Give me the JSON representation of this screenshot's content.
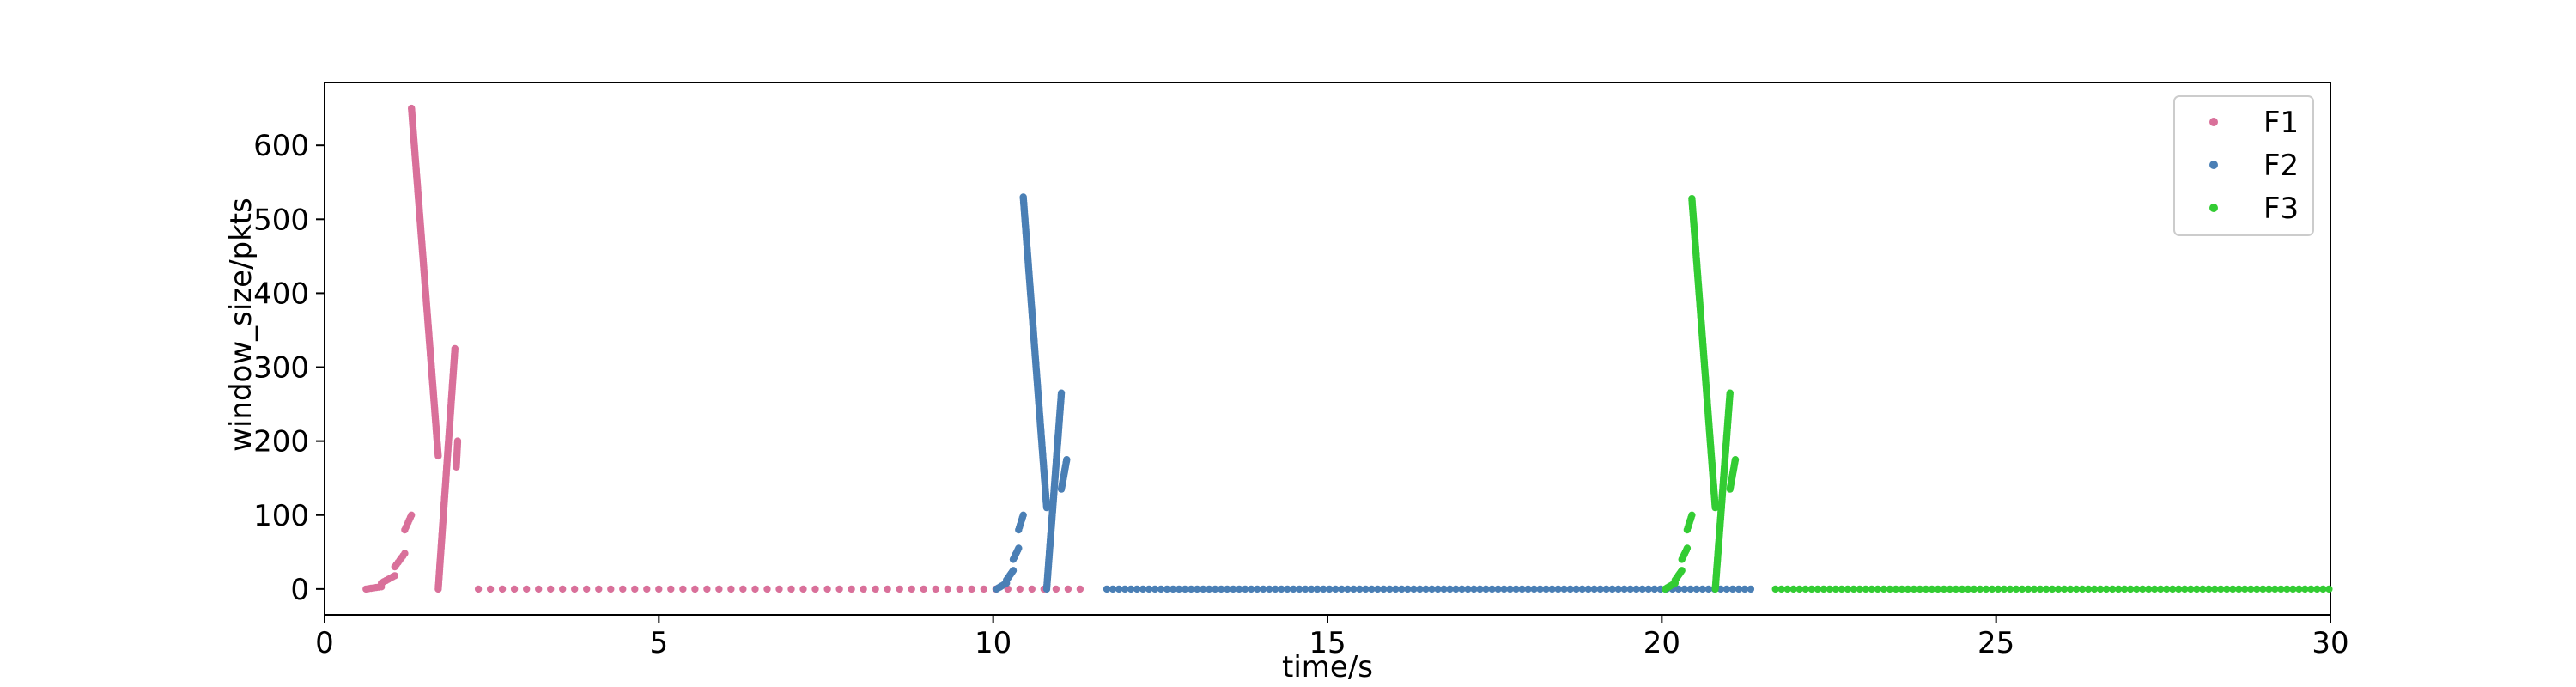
{
  "chart_data": {
    "type": "scatter",
    "title": "",
    "xlabel": "time/s",
    "ylabel": "window_size/pkts",
    "xlim": [
      0,
      30
    ],
    "ylim": [
      -35,
      685
    ],
    "x_ticks": [
      0,
      5,
      10,
      15,
      20,
      25,
      30
    ],
    "y_ticks": [
      0,
      100,
      200,
      300,
      400,
      500,
      600
    ],
    "grid": false,
    "legend_position": "top-right",
    "series": [
      {
        "name": "F1",
        "color": "#d9709a",
        "ramps": [
          [
            1.7,
            1.3,
            180,
            650
          ],
          [
            1.7,
            1.95,
            0,
            325
          ],
          [
            1.97,
            1.99,
            165,
            200
          ]
        ],
        "steps": [
          [
            0.62,
            0.85,
            0,
            3
          ],
          [
            0.85,
            1.05,
            8,
            18
          ],
          [
            1.05,
            1.2,
            30,
            48
          ],
          [
            1.2,
            1.3,
            80,
            100
          ]
        ],
        "tail": {
          "start": 2.3,
          "end": 11.4,
          "step": 0.18,
          "value": 0
        }
      },
      {
        "name": "F2",
        "color": "#4a7fb5",
        "ramps": [
          [
            10.8,
            10.45,
            110,
            530
          ],
          [
            10.8,
            11.02,
            0,
            265
          ],
          [
            11.02,
            11.1,
            135,
            175
          ]
        ],
        "steps": [
          [
            10.05,
            10.2,
            0,
            8
          ],
          [
            10.2,
            10.3,
            12,
            25
          ],
          [
            10.3,
            10.38,
            40,
            55
          ],
          [
            10.38,
            10.45,
            80,
            100
          ]
        ],
        "tail": {
          "start": 11.7,
          "end": 21.4,
          "step": 0.09,
          "value": 0
        }
      },
      {
        "name": "F3",
        "color": "#33cc33",
        "ramps": [
          [
            20.8,
            20.45,
            110,
            528
          ],
          [
            20.8,
            21.02,
            0,
            265
          ],
          [
            21.02,
            21.1,
            135,
            175
          ]
        ],
        "steps": [
          [
            20.05,
            20.2,
            0,
            8
          ],
          [
            20.2,
            20.3,
            12,
            25
          ],
          [
            20.3,
            20.38,
            40,
            55
          ],
          [
            20.38,
            20.45,
            80,
            100
          ]
        ],
        "tail": {
          "start": 21.7,
          "end": 30.0,
          "step": 0.09,
          "value": 0
        }
      }
    ]
  }
}
